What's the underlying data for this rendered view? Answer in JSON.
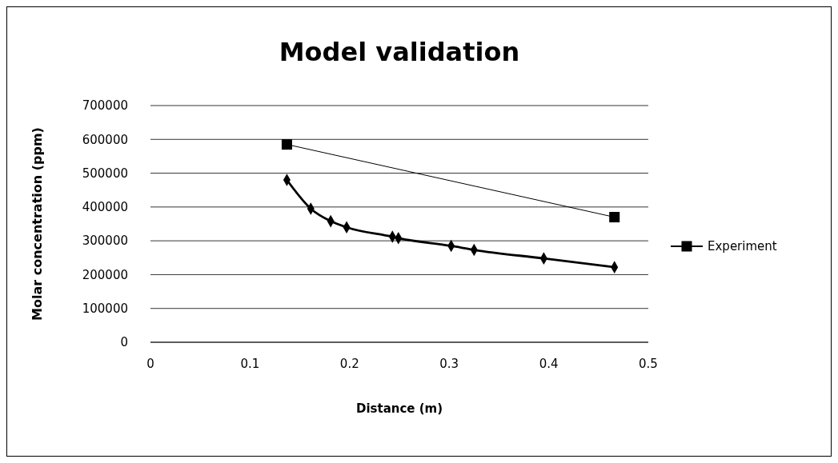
{
  "chart_data": {
    "type": "line",
    "title": "Model validation",
    "xlabel": "Distance (m)",
    "ylabel": "Molar concentration (ppm)",
    "xlim": [
      0,
      0.5
    ],
    "xticks": [
      0,
      0.1,
      0.2,
      0.3,
      0.4,
      0.5
    ],
    "ylim": [
      0,
      700000
    ],
    "yticks": [
      0,
      100000,
      200000,
      300000,
      400000,
      500000,
      600000,
      700000
    ],
    "grid": "y",
    "legend": "right",
    "series": [
      {
        "color": "#000000",
        "marker": "diamond",
        "x": [
          0.137,
          0.161,
          0.181,
          0.197,
          0.243,
          0.249,
          0.302,
          0.325,
          0.395,
          0.466
        ],
        "values": [
          480000,
          395000,
          358000,
          340000,
          312000,
          308000,
          285000,
          273000,
          248000,
          222000
        ]
      },
      {
        "name": "Experiment",
        "color": "#000000",
        "marker": "square",
        "x": [
          0.137,
          0.466
        ],
        "values": [
          585000,
          370000
        ]
      }
    ]
  }
}
